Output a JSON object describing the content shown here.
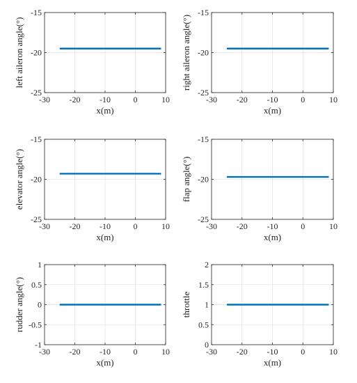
{
  "chart_data": [
    {
      "type": "line",
      "xlabel": "x(m)",
      "ylabel": "left aileron angle(°)",
      "xlim": [
        -30,
        10
      ],
      "ylim": [
        -25,
        -15
      ],
      "xticks": [
        -30,
        -20,
        -10,
        0,
        10
      ],
      "yticks": [
        -25,
        -20,
        -15
      ],
      "grid": true,
      "series": [
        {
          "x": [
            -25,
            8.5
          ],
          "y": [
            -19.5,
            -19.5
          ],
          "color": "#0072BD"
        }
      ]
    },
    {
      "type": "line",
      "xlabel": "x(m)",
      "ylabel": "right aileron angle(°)",
      "xlim": [
        -30,
        10
      ],
      "ylim": [
        -25,
        -15
      ],
      "xticks": [
        -30,
        -20,
        -10,
        0,
        10
      ],
      "yticks": [
        -25,
        -20,
        -15
      ],
      "grid": true,
      "series": [
        {
          "x": [
            -25,
            8.5
          ],
          "y": [
            -19.5,
            -19.5
          ],
          "color": "#0072BD"
        }
      ]
    },
    {
      "type": "line",
      "xlabel": "x(m)",
      "ylabel": "elevator angle(°)",
      "xlim": [
        -30,
        10
      ],
      "ylim": [
        -25,
        -15
      ],
      "xticks": [
        -30,
        -20,
        -10,
        0,
        10
      ],
      "yticks": [
        -25,
        -20,
        -15
      ],
      "grid": true,
      "series": [
        {
          "x": [
            -25,
            8.5
          ],
          "y": [
            -19.3,
            -19.3
          ],
          "color": "#0072BD"
        }
      ]
    },
    {
      "type": "line",
      "xlabel": "x(m)",
      "ylabel": "flap angle(°)",
      "xlim": [
        -30,
        10
      ],
      "ylim": [
        -25,
        -15
      ],
      "xticks": [
        -30,
        -20,
        -10,
        0,
        10
      ],
      "yticks": [
        -25,
        -20,
        -15
      ],
      "grid": true,
      "series": [
        {
          "x": [
            -25,
            8.5
          ],
          "y": [
            -19.7,
            -19.7
          ],
          "color": "#0072BD"
        }
      ]
    },
    {
      "type": "line",
      "xlabel": "x(m)",
      "ylabel": "rudder angle(°)",
      "xlim": [
        -30,
        10
      ],
      "ylim": [
        -1,
        1
      ],
      "xticks": [
        -30,
        -20,
        -10,
        0,
        10
      ],
      "yticks": [
        -1,
        -0.5,
        0,
        0.5,
        1
      ],
      "grid": true,
      "series": [
        {
          "x": [
            -25,
            8.5
          ],
          "y": [
            0,
            0
          ],
          "color": "#0072BD"
        }
      ]
    },
    {
      "type": "line",
      "xlabel": "x(m)",
      "ylabel": "throttle",
      "xlim": [
        -30,
        10
      ],
      "ylim": [
        0,
        2
      ],
      "xticks": [
        -30,
        -20,
        -10,
        0,
        10
      ],
      "yticks": [
        0,
        0.5,
        1,
        1.5,
        2
      ],
      "grid": true,
      "series": [
        {
          "x": [
            -25,
            8.5
          ],
          "y": [
            1,
            1
          ],
          "color": "#0072BD"
        }
      ]
    }
  ]
}
